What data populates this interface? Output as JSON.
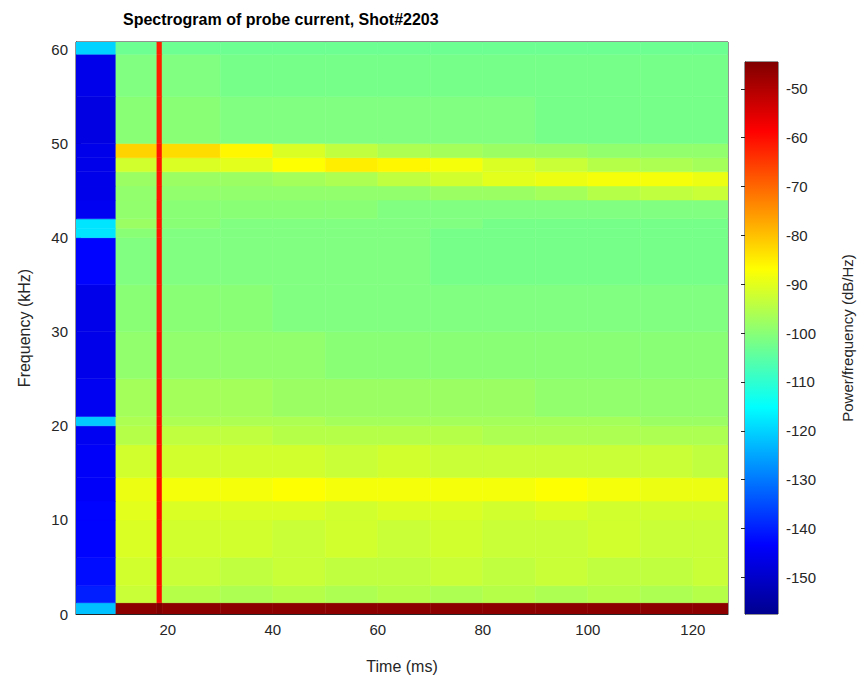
{
  "chart_data": {
    "type": "heatmap",
    "title": "Spectrogram of probe current, Shot#2203",
    "x_label": "Time (ms)",
    "y_label": "Frequency (kHz)",
    "xlim": [
      2.5,
      126.7
    ],
    "ylim": [
      0,
      60.8
    ],
    "xticks": [
      20,
      40,
      60,
      80,
      100,
      120
    ],
    "yticks": [
      0,
      10,
      20,
      30,
      40,
      50,
      60
    ],
    "grid": false,
    "x_bins": [
      2.5,
      10.1,
      17.9,
      18.9,
      30,
      40,
      50,
      60,
      70,
      80,
      90,
      100,
      110,
      120,
      126.7
    ],
    "y_bins": [
      0,
      1.2,
      3,
      6,
      10,
      12,
      14.5,
      18,
      20,
      21,
      25,
      30,
      35,
      40,
      41,
      42,
      44,
      45.5,
      47,
      48.5,
      50,
      55,
      59.5,
      60.8
    ],
    "values": [
      [
        -122,
        -46,
        -44,
        -46,
        -46,
        -46,
        -46,
        -46,
        -46,
        -46,
        -46,
        -46,
        -46,
        -46
      ],
      [
        -140,
        -93,
        -60,
        -95,
        -96,
        -95,
        -96,
        -95,
        -96,
        -95,
        -96,
        -95,
        -96,
        -95
      ],
      [
        -142,
        -92,
        -60,
        -93,
        -94,
        -93,
        -94,
        -94,
        -93,
        -94,
        -93,
        -94,
        -94,
        -93
      ],
      [
        -143,
        -91,
        -60,
        -92,
        -92,
        -93,
        -92,
        -93,
        -92,
        -93,
        -93,
        -92,
        -93,
        -93
      ],
      [
        -143,
        -90,
        -60,
        -91,
        -91,
        -91,
        -92,
        -91,
        -91,
        -92,
        -91,
        -92,
        -92,
        -92
      ],
      [
        -144,
        -89,
        -60,
        -88,
        -88,
        -87,
        -88,
        -88,
        -88,
        -88,
        -87,
        -88,
        -89,
        -89
      ],
      [
        -144,
        -92,
        -60,
        -92,
        -92,
        -92,
        -93,
        -92,
        -93,
        -93,
        -93,
        -93,
        -93,
        -94
      ],
      [
        -145,
        -95,
        -60,
        -94,
        -94,
        -95,
        -95,
        -95,
        -95,
        -96,
        -96,
        -96,
        -96,
        -96
      ],
      [
        -121,
        -96,
        -60,
        -96,
        -96,
        -96,
        -97,
        -97,
        -97,
        -97,
        -97,
        -97,
        -98,
        -98
      ],
      [
        -145,
        -97,
        -60,
        -97,
        -97,
        -98,
        -98,
        -98,
        -98,
        -98,
        -99,
        -99,
        -99,
        -99
      ],
      [
        -146,
        -99,
        -60,
        -99,
        -99,
        -99,
        -100,
        -100,
        -100,
        -100,
        -100,
        -100,
        -100,
        -100
      ],
      [
        -146,
        -100,
        -61,
        -100,
        -100,
        -101,
        -101,
        -101,
        -101,
        -101,
        -101,
        -101,
        -101,
        -101
      ],
      [
        -143,
        -101,
        -61,
        -101,
        -101,
        -101,
        -101,
        -101,
        -102,
        -102,
        -102,
        -102,
        -102,
        -102
      ],
      [
        -118,
        -100,
        -61,
        -101,
        -101,
        -101,
        -101,
        -101,
        -102,
        -102,
        -102,
        -102,
        -102,
        -102
      ],
      [
        -118,
        -98,
        -61,
        -100,
        -101,
        -101,
        -101,
        -101,
        -101,
        -102,
        -102,
        -102,
        -102,
        -102
      ],
      [
        -145,
        -99,
        -61,
        -100,
        -100,
        -100,
        -100,
        -101,
        -101,
        -101,
        -101,
        -101,
        -101,
        -101
      ],
      [
        -146,
        -99,
        -61,
        -99,
        -99,
        -99,
        -99,
        -99,
        -98,
        -98,
        -97,
        -95,
        -94,
        -93
      ],
      [
        -146,
        -98,
        -61,
        -98,
        -98,
        -97,
        -96,
        -94,
        -92,
        -90,
        -89,
        -88,
        -88,
        -89
      ],
      [
        -146,
        -92,
        -61,
        -91,
        -90,
        -87,
        -85,
        -86,
        -88,
        -91,
        -93,
        -95,
        -96,
        -97
      ],
      [
        -146,
        -82,
        -61,
        -83,
        -86,
        -91,
        -94,
        -96,
        -97,
        -98,
        -98,
        -99,
        -99,
        -99
      ],
      [
        -147,
        -100,
        -62,
        -100,
        -101,
        -101,
        -101,
        -101,
        -101,
        -101,
        -102,
        -102,
        -102,
        -102
      ],
      [
        -146,
        -101,
        -62,
        -101,
        -102,
        -102,
        -102,
        -102,
        -102,
        -102,
        -102,
        -102,
        -102,
        -102
      ],
      [
        -120,
        -103,
        -62,
        -103,
        -103,
        -103,
        -103,
        -103,
        -103,
        -103,
        -103,
        -103,
        -103,
        -103
      ]
    ],
    "colorbar": {
      "label": "Power/frequency (dB/Hz)",
      "range": [
        -157.5,
        -44.5
      ],
      "ticks": [
        -50,
        -60,
        -70,
        -80,
        -90,
        -100,
        -110,
        -120,
        -130,
        -140,
        -150
      ]
    }
  }
}
